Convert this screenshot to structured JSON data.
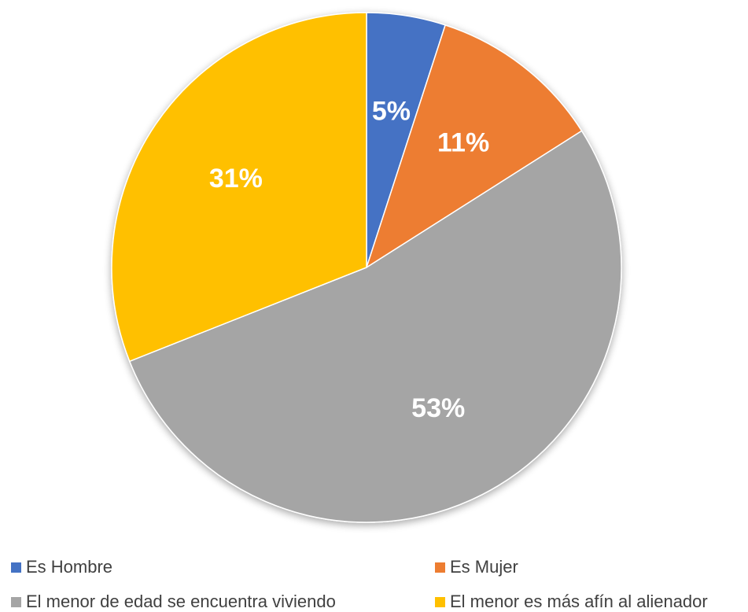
{
  "chart_data": {
    "type": "pie",
    "title": "",
    "categories": [
      "Es Hombre",
      "Es Mujer",
      "El menor de edad se encuentra viviendo",
      "El menor es más afín al alienador"
    ],
    "values": [
      5,
      11,
      53,
      31
    ],
    "data_labels": [
      "5%",
      "11%",
      "53%",
      "31%"
    ],
    "colors": [
      "#4472C4",
      "#ED7D31",
      "#A5A5A5",
      "#FFC000"
    ],
    "start_angle_deg": 0,
    "direction": "clockwise",
    "legend_position": "bottom",
    "data_label_color": "#FFFFFF"
  }
}
